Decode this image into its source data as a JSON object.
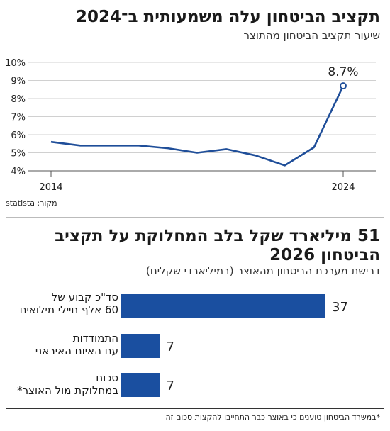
{
  "title1": "תקציב הביטחון עלה משמעותית ב־2024",
  "subtitle1": "שיעור תקציב הביטחון מהתוצר",
  "source_text": "statista :מקור",
  "title2": "51 מיליארד שקל בלב המחלוקת על תקציב הביטחון 2026",
  "subtitle2": "דרישת מערכת הביטחון מהאוצר (במיליארדי שקלים)",
  "footnote": "*במשרד הביטחון טוענים כי באוצר כבר התחייבו להקצות סכום זה",
  "colors": {
    "line": "#1f4e99",
    "bar": "#1a4fa0",
    "grid": "#d0d0d0",
    "axis": "#555555"
  },
  "chart_data": [
    {
      "type": "line",
      "title": "תקציב הביטחון עלה משמעותית ב־2024",
      "subtitle": "שיעור תקציב הביטחון מהתוצר",
      "x": [
        2014,
        2015,
        2016,
        2017,
        2018,
        2019,
        2020,
        2021,
        2022,
        2023,
        2024
      ],
      "x_tick_labels": [
        "2014",
        "2024"
      ],
      "y_tick_labels": [
        "10%",
        "9%",
        "8%",
        "7%",
        "6%",
        "5%",
        "4%"
      ],
      "ylim": [
        4,
        10
      ],
      "series": [
        {
          "values": [
            5.6,
            5.4,
            5.4,
            5.4,
            5.25,
            5.0,
            5.2,
            4.85,
            4.3,
            5.3,
            8.7
          ]
        }
      ],
      "annotations": [
        {
          "x": 2024,
          "label": "8.7%"
        }
      ],
      "grid": true
    },
    {
      "type": "bar",
      "orientation": "horizontal",
      "title": "51 מיליארד שקל בלב המחלוקת על תקציב הביטחון 2026",
      "subtitle": "דרישת מערכת הביטחון מהאוצר (במיליארדי שקלים)",
      "categories": [
        [
          "סד\"כ קבוע של",
          "60 אלף חיילי מילואים"
        ],
        [
          "התמודדות",
          "עם האיום האיראני"
        ],
        [
          "סכום",
          "במחלוקת מול האוצר*"
        ]
      ],
      "values": [
        37,
        7,
        7
      ],
      "value_labels": [
        "37",
        "7",
        "7"
      ]
    }
  ]
}
